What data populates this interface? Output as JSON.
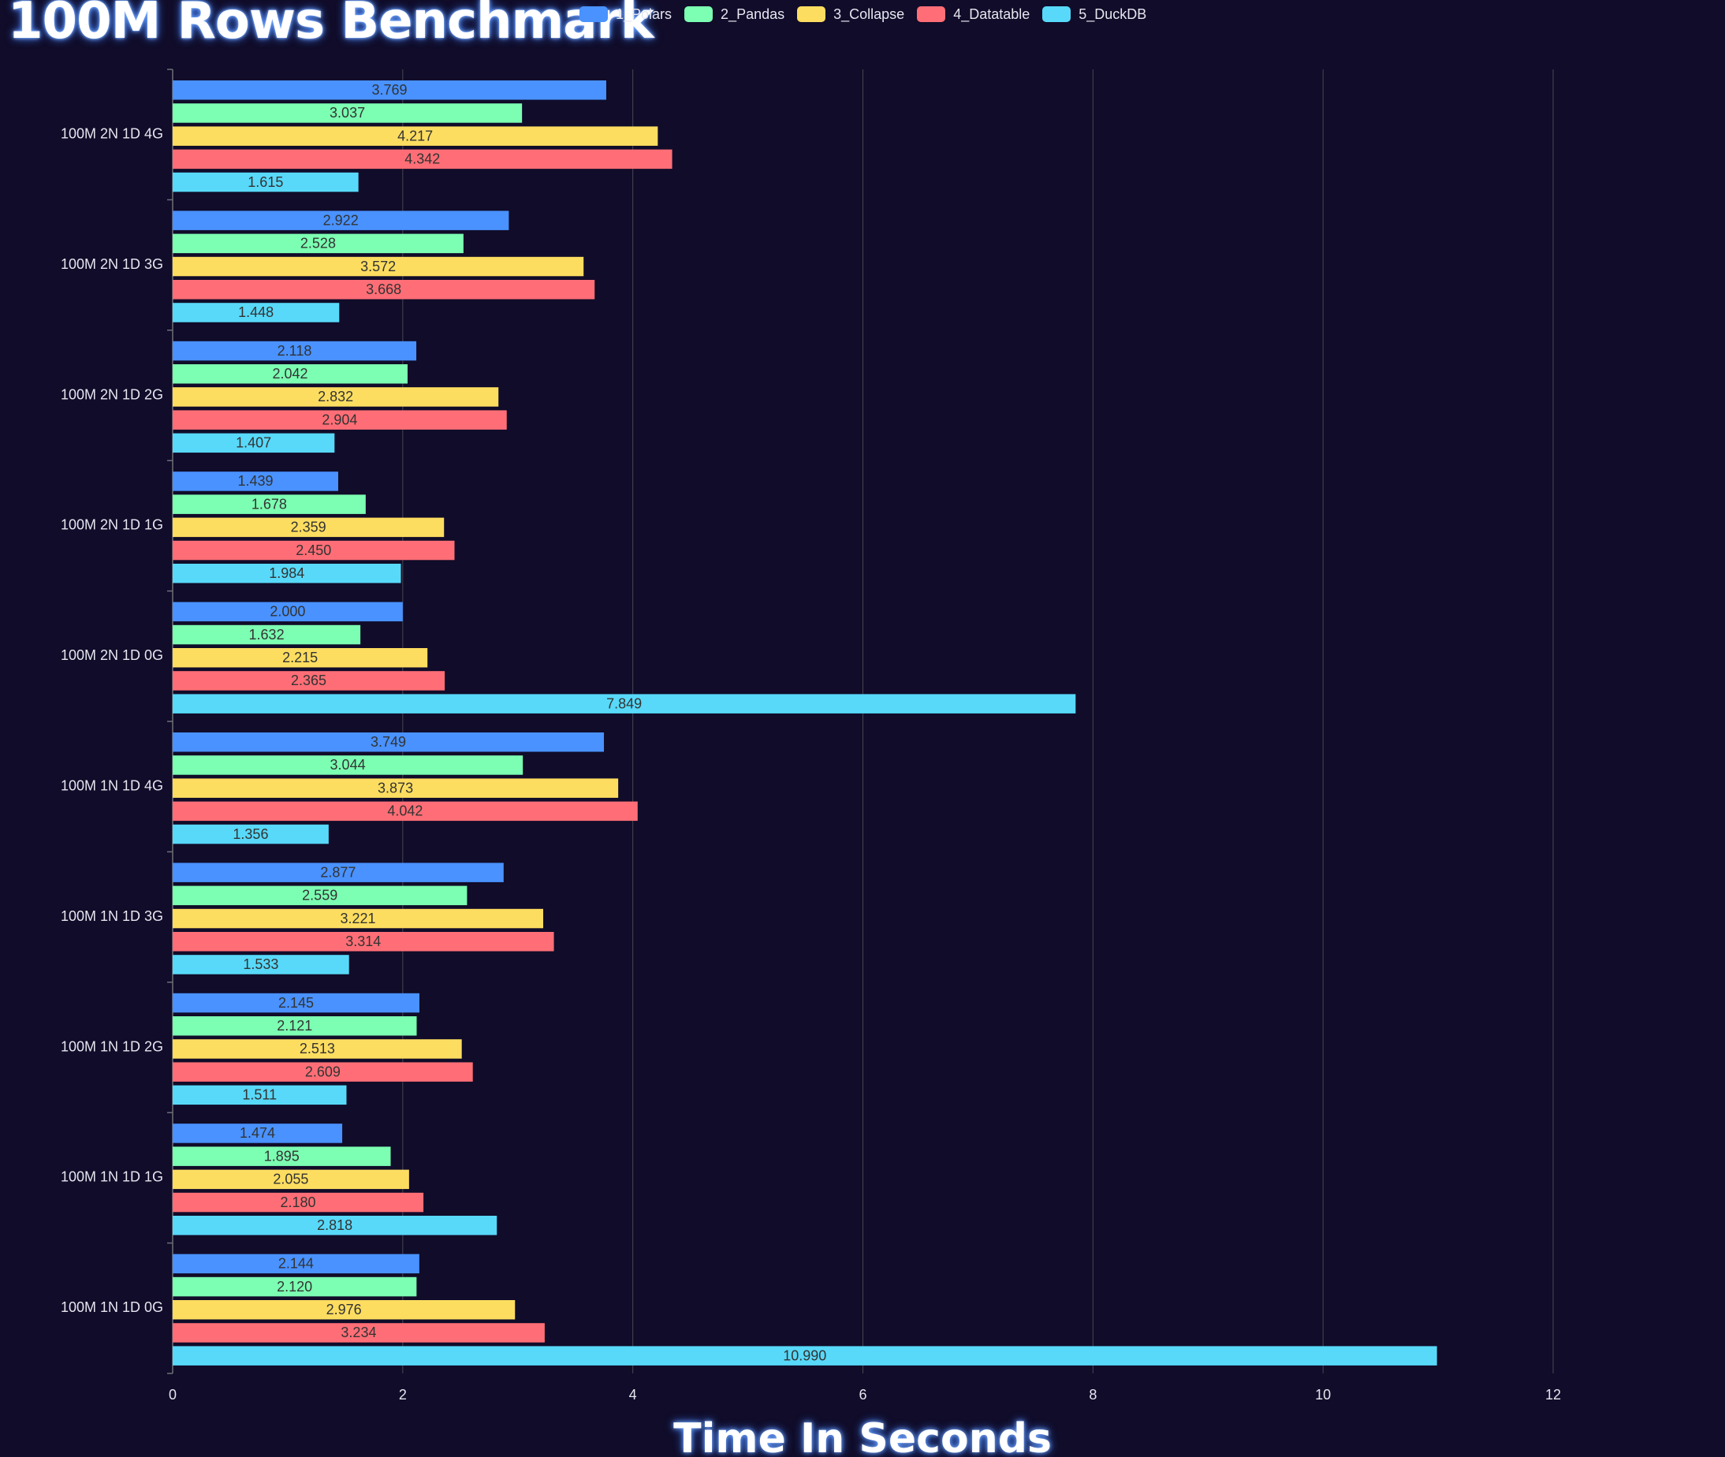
{
  "chart_data": {
    "type": "bar",
    "orientation": "horizontal",
    "title": "100M Rows Benchmark",
    "xlabel": "Time In Seconds",
    "ylabel": "",
    "xlim": [
      0,
      12
    ],
    "xticks": [
      "0",
      "2",
      "4",
      "6",
      "8",
      "10",
      "12"
    ],
    "grid": true,
    "legend_position": "top",
    "categories": [
      "100M 2N 1D 4G",
      "100M 2N 1D 3G",
      "100M 2N 1D 2G",
      "100M 2N 1D 1G",
      "100M 2N 1D 0G",
      "100M 1N 1D 4G",
      "100M 1N 1D 3G",
      "100M 1N 1D 2G",
      "100M 1N 1D 1G",
      "100M 1N 1D 0G"
    ],
    "series": [
      {
        "name": "1_Polars",
        "color": "#4992ff",
        "values": [
          3.769,
          2.922,
          2.118,
          1.439,
          2.0,
          3.749,
          2.877,
          2.145,
          1.474,
          2.144
        ],
        "labels": [
          "3.769",
          "2.922",
          "2.118",
          "1.439",
          "2.000",
          "3.749",
          "2.877",
          "2.145",
          "1.474",
          "2.144"
        ]
      },
      {
        "name": "2_Pandas",
        "color": "#7cffb2",
        "values": [
          3.037,
          2.528,
          2.042,
          1.678,
          1.632,
          3.044,
          2.559,
          2.121,
          1.895,
          2.12
        ],
        "labels": [
          "3.037",
          "2.528",
          "2.042",
          "1.678",
          "1.632",
          "3.044",
          "2.559",
          "2.121",
          "1.895",
          "2.120"
        ]
      },
      {
        "name": "3_Collapse",
        "color": "#fddd60",
        "values": [
          4.217,
          3.572,
          2.832,
          2.359,
          2.215,
          3.873,
          3.221,
          2.513,
          2.055,
          2.976
        ],
        "labels": [
          "4.217",
          "3.572",
          "2.832",
          "2.359",
          "2.215",
          "3.873",
          "3.221",
          "2.513",
          "2.055",
          "2.976"
        ]
      },
      {
        "name": "4_Datatable",
        "color": "#ff6e76",
        "values": [
          4.342,
          3.668,
          2.904,
          2.45,
          2.365,
          4.042,
          3.314,
          2.609,
          2.18,
          3.234
        ],
        "labels": [
          "4.342",
          "3.668",
          "2.904",
          "2.450",
          "2.365",
          "4.042",
          "3.314",
          "2.609",
          "2.180",
          "3.234"
        ]
      },
      {
        "name": "5_DuckDB",
        "color": "#58d9f9",
        "values": [
          1.615,
          1.448,
          1.407,
          1.984,
          7.849,
          1.356,
          1.533,
          1.511,
          2.818,
          10.99
        ],
        "labels": [
          "1.615",
          "1.448",
          "1.407",
          "1.984",
          "7.849",
          "1.356",
          "1.533",
          "1.511",
          "2.818",
          "10.990"
        ]
      }
    ]
  },
  "colors": {
    "background": "#100c29",
    "grid": "#484753",
    "axis": "#6e7079",
    "tick_text": "#e6e6f0",
    "bar_label_text": "#333333"
  }
}
